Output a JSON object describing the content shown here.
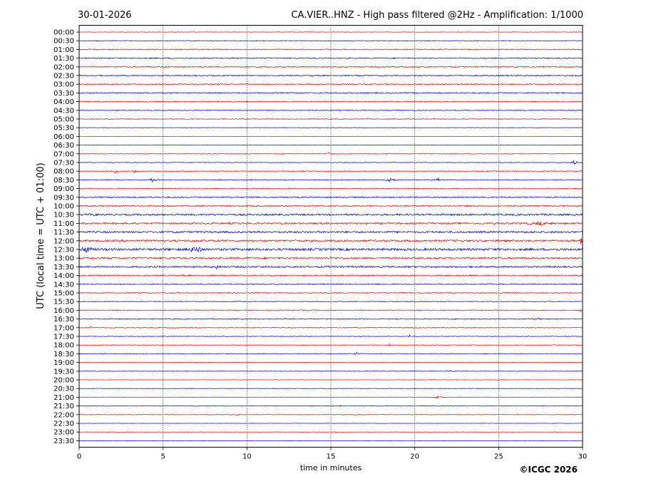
{
  "chart_data": {
    "type": "line",
    "title_left": "30-01-2026",
    "title_right": "CA.VIER..HNZ - High pass filtered @2Hz - Amplification: 1/1000",
    "xlabel": "time in minutes",
    "ylabel": "UTC (local time = UTC + 01:00)",
    "copyright": "©ICGC 2026",
    "xlim": [
      0,
      30
    ],
    "xticks": [
      "0",
      "5",
      "10",
      "15",
      "20",
      "25",
      "30"
    ],
    "grid_x": true,
    "colors": {
      "even_row": "#ff0000",
      "odd_row": "#0000ff",
      "grid": "#000000"
    },
    "rows": [
      {
        "label": "00:00",
        "noise": 0.4,
        "events": []
      },
      {
        "label": "00:30",
        "noise": 0.6,
        "events": []
      },
      {
        "label": "01:00",
        "noise": 0.8,
        "events": []
      },
      {
        "label": "01:30",
        "noise": 1.0,
        "events": []
      },
      {
        "label": "02:00",
        "noise": 1.0,
        "events": []
      },
      {
        "label": "02:30",
        "noise": 1.0,
        "events": []
      },
      {
        "label": "03:00",
        "noise": 0.9,
        "events": []
      },
      {
        "label": "03:30",
        "noise": 1.0,
        "events": []
      },
      {
        "label": "04:00",
        "noise": 0.9,
        "events": []
      },
      {
        "label": "04:30",
        "noise": 0.8,
        "events": []
      },
      {
        "label": "05:00",
        "noise": 0.6,
        "events": []
      },
      {
        "label": "05:30",
        "noise": 0.4,
        "events": []
      },
      {
        "label": "06:00",
        "noise": 0.3,
        "events": []
      },
      {
        "label": "06:30",
        "noise": 0.3,
        "events": []
      },
      {
        "label": "07:00",
        "noise": 0.6,
        "events": [
          {
            "t": 14.9,
            "amp": 4,
            "dur": 0.3
          }
        ]
      },
      {
        "label": "07:30",
        "noise": 0.6,
        "events": [
          {
            "t": 29.5,
            "amp": 3,
            "dur": 0.5
          }
        ]
      },
      {
        "label": "08:00",
        "noise": 0.7,
        "events": [
          {
            "t": 2.2,
            "amp": 4,
            "dur": 0.4
          },
          {
            "t": 3.3,
            "amp": 3,
            "dur": 0.2
          }
        ]
      },
      {
        "label": "08:30",
        "noise": 0.7,
        "events": [
          {
            "t": 4.4,
            "amp": 3,
            "dur": 0.5
          },
          {
            "t": 18.5,
            "amp": 4,
            "dur": 0.8
          },
          {
            "t": 21.4,
            "amp": 3,
            "dur": 0.4
          }
        ]
      },
      {
        "label": "09:00",
        "noise": 0.8,
        "events": [
          {
            "t": 12.5,
            "amp": 2,
            "dur": 0.3
          }
        ]
      },
      {
        "label": "09:30",
        "noise": 1.1,
        "events": []
      },
      {
        "label": "10:00",
        "noise": 1.2,
        "events": []
      },
      {
        "label": "10:30",
        "noise": 1.5,
        "events": [
          {
            "t": 0.6,
            "amp": 3,
            "dur": 0.8
          }
        ]
      },
      {
        "label": "11:00",
        "noise": 1.5,
        "events": [
          {
            "t": 27.5,
            "amp": 2.5,
            "dur": 1.5
          }
        ]
      },
      {
        "label": "11:30",
        "noise": 1.6,
        "events": []
      },
      {
        "label": "12:00",
        "noise": 1.7,
        "events": [
          {
            "t": 29.9,
            "amp": 5,
            "dur": 0.2
          }
        ]
      },
      {
        "label": "12:30",
        "noise": 2.0,
        "events": [
          {
            "t": 0.5,
            "amp": 6,
            "dur": 0.8
          },
          {
            "t": 7.0,
            "amp": 6,
            "dur": 1.0
          }
        ]
      },
      {
        "label": "13:00",
        "noise": 1.6,
        "events": []
      },
      {
        "label": "13:30",
        "noise": 1.5,
        "events": [
          {
            "t": 8.2,
            "amp": 7,
            "dur": 0.15
          }
        ]
      },
      {
        "label": "14:00",
        "noise": 1.1,
        "events": []
      },
      {
        "label": "14:30",
        "noise": 0.9,
        "events": [
          {
            "t": 24.5,
            "amp": 2,
            "dur": 0.4
          }
        ]
      },
      {
        "label": "15:00",
        "noise": 0.8,
        "events": [
          {
            "t": 19.2,
            "amp": 2,
            "dur": 0.1
          }
        ]
      },
      {
        "label": "15:30",
        "noise": 0.7,
        "events": []
      },
      {
        "label": "16:00",
        "noise": 0.8,
        "events": [
          {
            "t": 29.9,
            "amp": 3,
            "dur": 0.2
          }
        ]
      },
      {
        "label": "16:30",
        "noise": 0.8,
        "events": [
          {
            "t": 12.3,
            "amp": 5,
            "dur": 0.15
          },
          {
            "t": 22.5,
            "amp": 2,
            "dur": 0.3
          },
          {
            "t": 27.3,
            "amp": 2,
            "dur": 0.5
          }
        ]
      },
      {
        "label": "17:00",
        "noise": 0.6,
        "events": [
          {
            "t": 0.7,
            "amp": 2,
            "dur": 0.2
          }
        ]
      },
      {
        "label": "17:30",
        "noise": 0.5,
        "events": [
          {
            "t": 19.7,
            "amp": 2,
            "dur": 0.1
          }
        ]
      },
      {
        "label": "18:00",
        "noise": 0.5,
        "events": [
          {
            "t": 18.5,
            "amp": 3,
            "dur": 0.15
          }
        ]
      },
      {
        "label": "18:30",
        "noise": 0.6,
        "events": [
          {
            "t": 16.5,
            "amp": 2.5,
            "dur": 0.5
          }
        ]
      },
      {
        "label": "19:00",
        "noise": 0.4,
        "events": [
          {
            "t": 27.3,
            "amp": 2,
            "dur": 0.15
          }
        ]
      },
      {
        "label": "19:30",
        "noise": 0.5,
        "events": [
          {
            "t": 22.0,
            "amp": 1.5,
            "dur": 0.5
          }
        ]
      },
      {
        "label": "20:00",
        "noise": 0.4,
        "events": []
      },
      {
        "label": "20:30",
        "noise": 0.5,
        "events": [
          {
            "t": 6.7,
            "amp": 2,
            "dur": 0.2
          }
        ]
      },
      {
        "label": "21:00",
        "noise": 0.5,
        "events": [
          {
            "t": 21.3,
            "amp": 2,
            "dur": 0.6
          }
        ]
      },
      {
        "label": "21:30",
        "noise": 0.6,
        "events": [
          {
            "t": 15.5,
            "amp": 1.5,
            "dur": 0.6
          }
        ]
      },
      {
        "label": "22:00",
        "noise": 0.4,
        "events": [
          {
            "t": 9.5,
            "amp": 1.5,
            "dur": 0.3
          }
        ]
      },
      {
        "label": "22:30",
        "noise": 0.3,
        "events": []
      },
      {
        "label": "23:00",
        "noise": 0.3,
        "events": [
          {
            "t": 3.0,
            "amp": 1.5,
            "dur": 0.2
          }
        ]
      },
      {
        "label": "23:30",
        "noise": 0.2,
        "events": []
      }
    ]
  }
}
